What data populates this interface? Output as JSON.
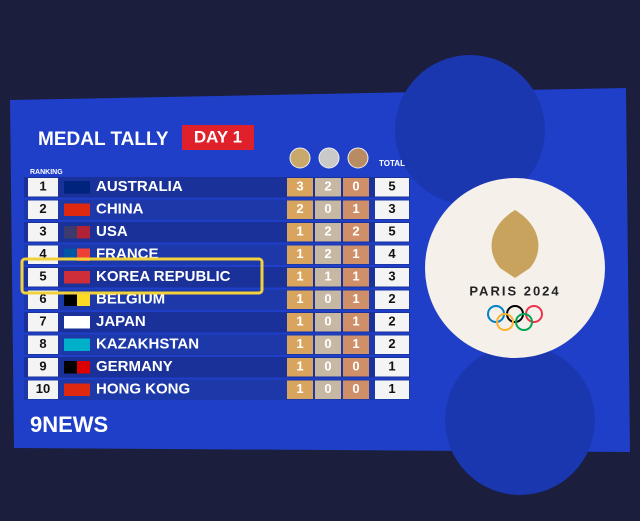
{
  "header": {
    "title": "MEDAL TALLY",
    "day": "DAY 1"
  },
  "table": {
    "rank_label": "RANKING",
    "total_label": "TOTAL",
    "rows": [
      [
        "1",
        "AUSTRALIA",
        "3",
        "2",
        "0",
        "5"
      ],
      [
        "2",
        "CHINA",
        "2",
        "0",
        "1",
        "3"
      ],
      [
        "3",
        "USA",
        "1",
        "2",
        "2",
        "5"
      ],
      [
        "4",
        "FRANCE",
        "1",
        "2",
        "1",
        "4"
      ],
      [
        "5",
        "KOREA REPUBLIC",
        "1",
        "1",
        "1",
        "3"
      ],
      [
        "6",
        "BELGIUM",
        "1",
        "0",
        "1",
        "2"
      ],
      [
        "7",
        "JAPAN",
        "1",
        "0",
        "1",
        "2"
      ],
      [
        "8",
        "KAZAKHSTAN",
        "1",
        "0",
        "1",
        "2"
      ],
      [
        "9",
        "GERMANY",
        "1",
        "0",
        "0",
        "1"
      ],
      [
        "10",
        "HONG KONG",
        "1",
        "0",
        "0",
        "1"
      ]
    ]
  },
  "logo": {
    "text": "PARIS 2024"
  },
  "broadcaster": "9NEWS"
}
